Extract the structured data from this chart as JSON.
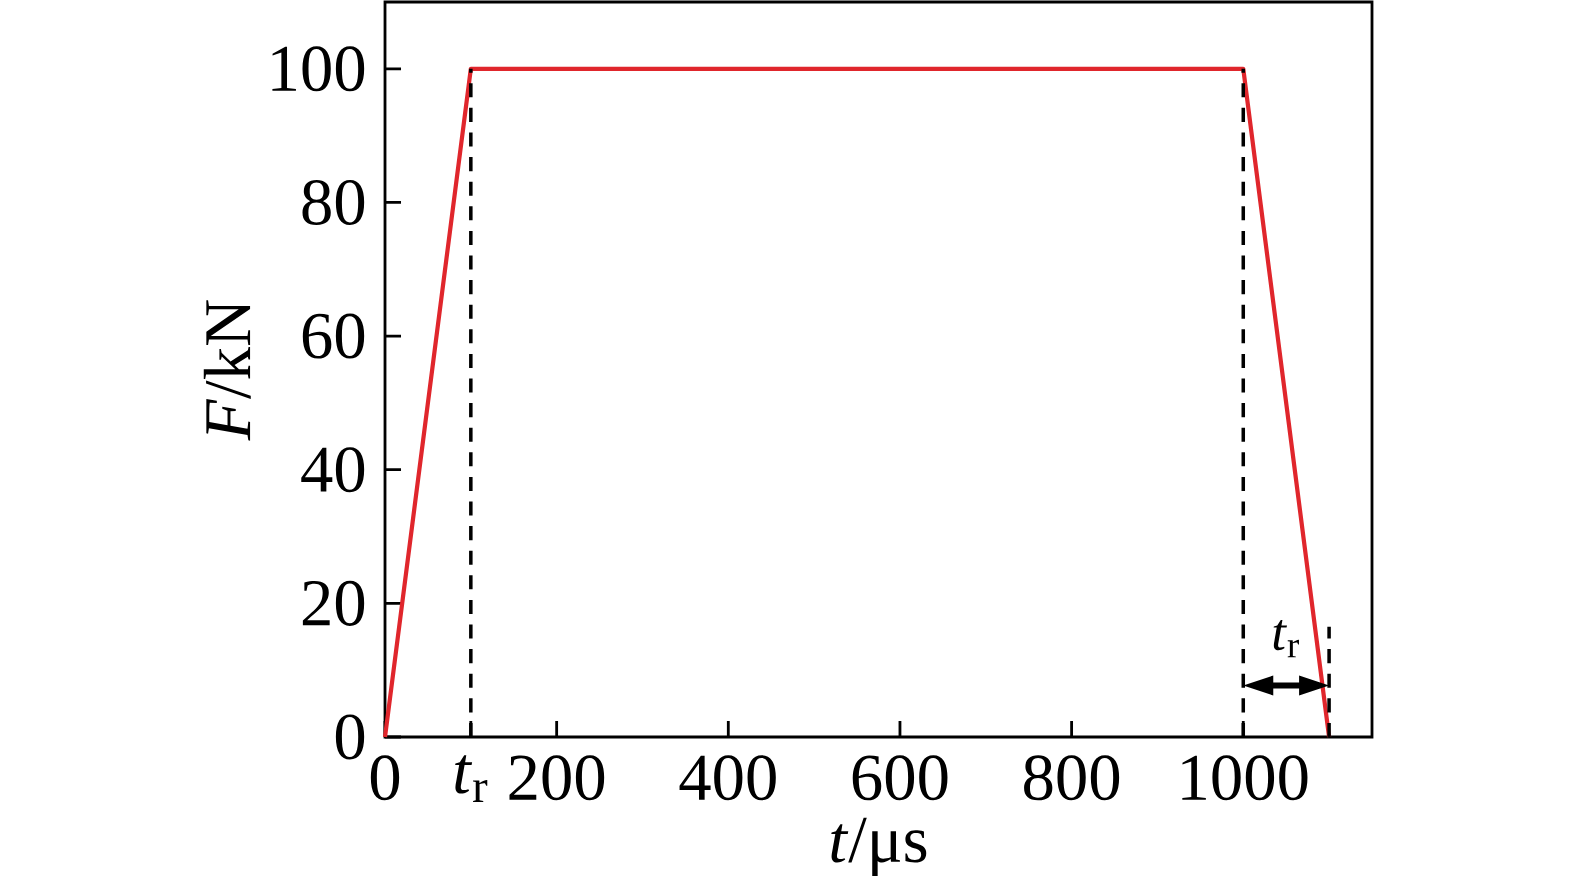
{
  "chart_data": {
    "type": "line",
    "xlabel": "*t*/μs",
    "ylabel": "*F*/kN",
    "xlim": [
      0,
      1150
    ],
    "ylim": [
      0,
      110
    ],
    "xticks": [
      0,
      {
        "value": 100,
        "label": "*t*$_{r}$"
      },
      200,
      400,
      600,
      800,
      1000
    ],
    "yticks": [
      0,
      20,
      40,
      60,
      80,
      100
    ],
    "series": [
      {
        "color": "#e0262c",
        "x": [
          0,
          100,
          1000,
          1100
        ],
        "values": [
          0,
          100,
          100,
          0
        ]
      }
    ],
    "ref_lines": [
      {
        "axis": "x",
        "value": 100,
        "color": "#000000",
        "line_style": "dashed"
      },
      {
        "axis": "x",
        "value": 1000,
        "color": "#000000",
        "line_style": "dashed"
      }
    ],
    "annotations": [
      {
        "text": "*t*$_{r}$",
        "x": 1100,
        "y": 0
      }
    ],
    "grid": false
  }
}
